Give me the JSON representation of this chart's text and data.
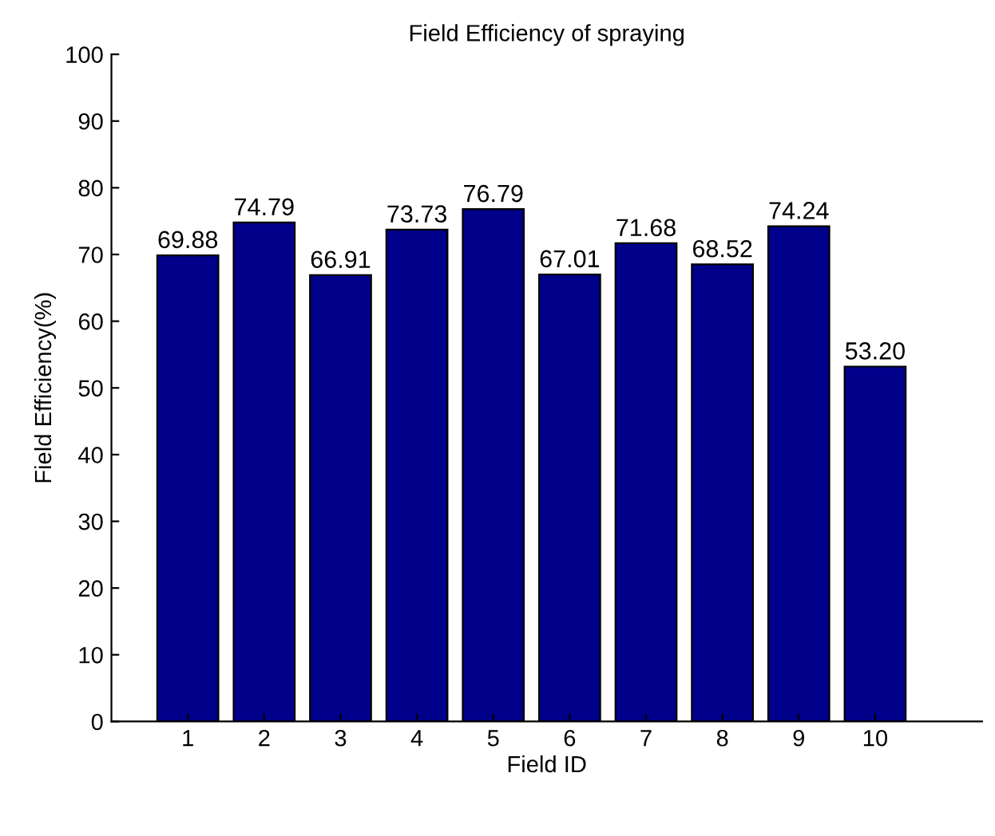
{
  "chart_data": {
    "type": "bar",
    "title": "Field Efficiency of spraying",
    "xlabel": "Field ID",
    "ylabel": "Field Efficiency(%)",
    "x": [
      1,
      2,
      3,
      4,
      5,
      6,
      7,
      8,
      9,
      10
    ],
    "values": [
      69.88,
      74.79,
      66.91,
      73.73,
      76.79,
      67.01,
      71.68,
      68.52,
      74.24,
      53.2
    ],
    "value_labels": [
      "69.88",
      "74.79",
      "66.91",
      "73.73",
      "76.79",
      "67.01",
      "71.68",
      "68.52",
      "74.24",
      "53.20"
    ],
    "color": "#00008b",
    "xlim": [
      0,
      11.4
    ],
    "xticks": [
      1,
      2,
      3,
      4,
      5,
      6,
      7,
      8,
      9,
      10
    ],
    "ylim": [
      0,
      100
    ],
    "yticks": [
      0,
      10,
      20,
      30,
      40,
      50,
      60,
      70,
      80,
      90,
      100
    ],
    "grid": false,
    "legend": false
  }
}
